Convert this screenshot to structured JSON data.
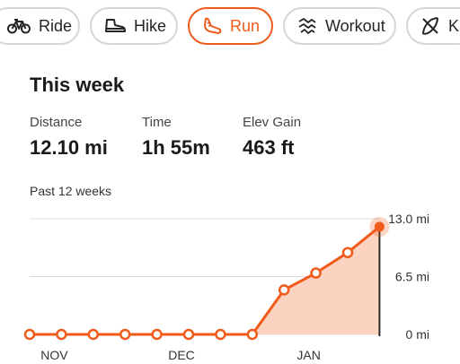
{
  "activity_tabs": [
    {
      "label": "Ride",
      "icon": "bike-icon",
      "active": false
    },
    {
      "label": "Hike",
      "icon": "hiking-boot-icon",
      "active": false
    },
    {
      "label": "Run",
      "icon": "running-shoe-icon",
      "active": true
    },
    {
      "label": "Workout",
      "icon": "workout-icon",
      "active": false
    },
    {
      "label": "K",
      "icon": "kayak-icon",
      "active": false
    }
  ],
  "summary": {
    "title": "This week",
    "stats": [
      {
        "label": "Distance",
        "value": "12.10 mi"
      },
      {
        "label": "Time",
        "value": "1h 55m"
      },
      {
        "label": "Elev Gain",
        "value": "463 ft"
      }
    ]
  },
  "chart_title": "Past 12 weeks",
  "colors": {
    "accent": "#f05a1a",
    "fill": "#fbd3c0",
    "grid": "#dcdcdc",
    "inactive_border": "#d6d6d6"
  },
  "chart_data": {
    "type": "area",
    "title": "Past 12 weeks",
    "x_ticks": [
      "NOV",
      "DEC",
      "JAN"
    ],
    "y_ticks": [
      "0 mi",
      "6.5 mi",
      "13.0 mi"
    ],
    "ylim": [
      0,
      13.0
    ],
    "grid": true,
    "series": [
      {
        "values": [
          0,
          0,
          0,
          0,
          0,
          0,
          0,
          0,
          5.0,
          6.9,
          9.2,
          12.1
        ]
      }
    ]
  }
}
